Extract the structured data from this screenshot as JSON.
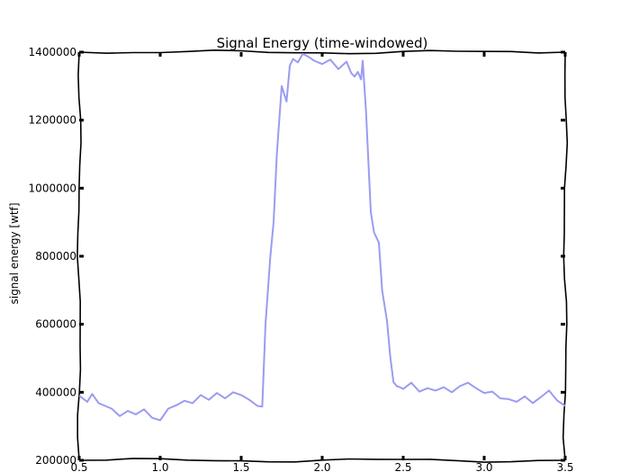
{
  "chart_data": {
    "type": "line",
    "title": "Signal Energy (time-windowed)",
    "xlabel": "",
    "ylabel": "signal energy [wtf]",
    "xlim": [
      0.5,
      3.5
    ],
    "ylim": [
      200000,
      1400000
    ],
    "x_ticks": [
      "0.5",
      "1.0",
      "1.5",
      "2.0",
      "2.5",
      "3.0",
      "3.5"
    ],
    "y_ticks": [
      "200000",
      "400000",
      "600000",
      "800000",
      "1000000",
      "1200000",
      "1400000"
    ],
    "grid": false,
    "line_color": "#9b9bf2",
    "series": [
      {
        "x": [
          0.5,
          0.55,
          0.58,
          0.62,
          0.66,
          0.7,
          0.75,
          0.8,
          0.85,
          0.9,
          0.95,
          1.0,
          1.05,
          1.1,
          1.15,
          1.2,
          1.25,
          1.3,
          1.35,
          1.4,
          1.45,
          1.5,
          1.55,
          1.6,
          1.63,
          1.65,
          1.68,
          1.7,
          1.72,
          1.75,
          1.78,
          1.8,
          1.82,
          1.85,
          1.88,
          1.9,
          1.92,
          1.95,
          2.0,
          2.05,
          2.1,
          2.15,
          2.18,
          2.2,
          2.22,
          2.24,
          2.25,
          2.27,
          2.3,
          2.32,
          2.35,
          2.37,
          2.4,
          2.42,
          2.44,
          2.46,
          2.48,
          2.5,
          2.55,
          2.6,
          2.65,
          2.7,
          2.75,
          2.8,
          2.85,
          2.9,
          2.95,
          3.0,
          3.05,
          3.1,
          3.15,
          3.2,
          3.25,
          3.3,
          3.35,
          3.4,
          3.45,
          3.5
        ],
        "values": [
          390000,
          372000,
          395000,
          368000,
          360000,
          352000,
          330000,
          345000,
          335000,
          350000,
          325000,
          318000,
          352000,
          362000,
          375000,
          368000,
          392000,
          378000,
          398000,
          382000,
          400000,
          392000,
          378000,
          360000,
          358000,
          600000,
          800000,
          900000,
          1100000,
          1300000,
          1255000,
          1360000,
          1380000,
          1370000,
          1395000,
          1390000,
          1385000,
          1375000,
          1365000,
          1378000,
          1350000,
          1372000,
          1338000,
          1328000,
          1342000,
          1320000,
          1375000,
          1230000,
          930000,
          870000,
          840000,
          700000,
          610000,
          505000,
          430000,
          418000,
          415000,
          410000,
          428000,
          402000,
          412000,
          405000,
          415000,
          400000,
          418000,
          428000,
          412000,
          398000,
          402000,
          382000,
          380000,
          372000,
          388000,
          368000,
          386000,
          405000,
          376000,
          360000
        ]
      }
    ]
  }
}
